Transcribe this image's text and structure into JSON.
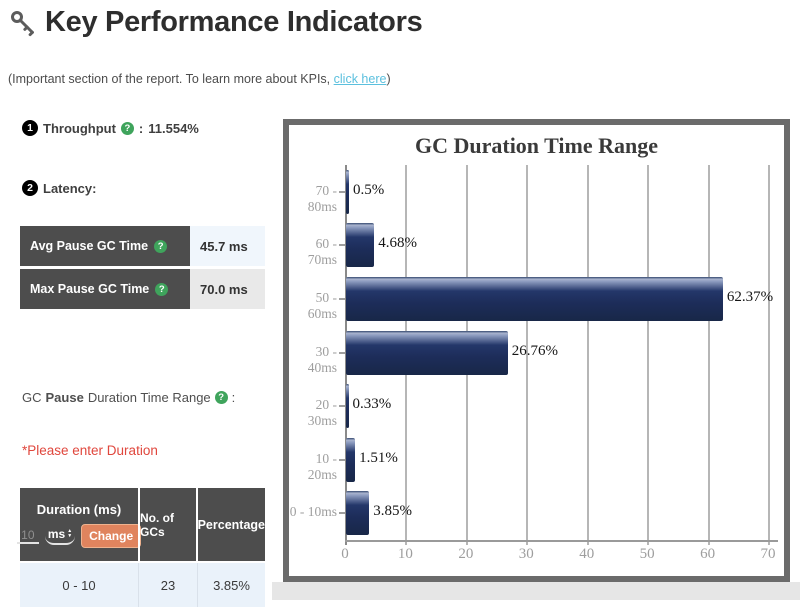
{
  "header": {
    "title": "Key Performance Indicators",
    "note_prefix": "(Important section of the report. To learn more about KPIs, ",
    "note_link": "click here",
    "note_suffix": ")"
  },
  "kpis": {
    "throughput": {
      "badge": "1",
      "label": "Throughput",
      "colon": ":",
      "value": "11.554%"
    },
    "latency": {
      "badge": "2",
      "label": "Latency:"
    }
  },
  "latency_table": {
    "rows": [
      {
        "label": "Avg Pause GC Time",
        "value": "45.7 ms"
      },
      {
        "label": "Max Pause GC Time",
        "value": "70.0 ms"
      }
    ]
  },
  "gc_pause_heading": {
    "prefix": "GC",
    "bold": "Pause",
    "suffix": "Duration Time Range",
    "colon": ":"
  },
  "duration_warning": "*Please enter Duration",
  "duration_table": {
    "col1_header": "Duration (ms)",
    "col2_header": "No. of GCs",
    "col3_header": "Percentage",
    "duration_input_value": "10",
    "unit_selected": "ms",
    "change_button_label": "Change",
    "rows": [
      {
        "duration": "0 - 10",
        "gcs": "23",
        "percentage": "3.85%"
      }
    ]
  },
  "chart_data": {
    "type": "bar",
    "orientation": "horizontal",
    "title": "GC Duration Time Range",
    "categories": [
      "70 - 80ms",
      "60 - 70ms",
      "50 - 60ms",
      "30 - 40ms",
      "20 - 30ms",
      "10 - 20ms",
      "0 - 10ms"
    ],
    "values": [
      0.5,
      4.68,
      62.37,
      26.76,
      0.33,
      1.51,
      3.85
    ],
    "value_labels": [
      "0.5%",
      "4.68%",
      "62.37%",
      "26.76%",
      "0.33%",
      "1.51%",
      "3.85%"
    ],
    "x_ticks": [
      0,
      10,
      20,
      30,
      40,
      50,
      60,
      70
    ],
    "xlim": [
      0,
      70
    ],
    "xlabel": "",
    "ylabel": "",
    "grid": true,
    "legend": false,
    "bar_color": "#1d2d5a"
  },
  "colors": {
    "bar_navy": "#1d2d5a",
    "table_header_gray": "#4d4d4d",
    "help_green": "#3fa45c",
    "link_teal": "#5bc0de",
    "warning_red": "#e0473d",
    "change_button_orange": "#e0845e"
  }
}
